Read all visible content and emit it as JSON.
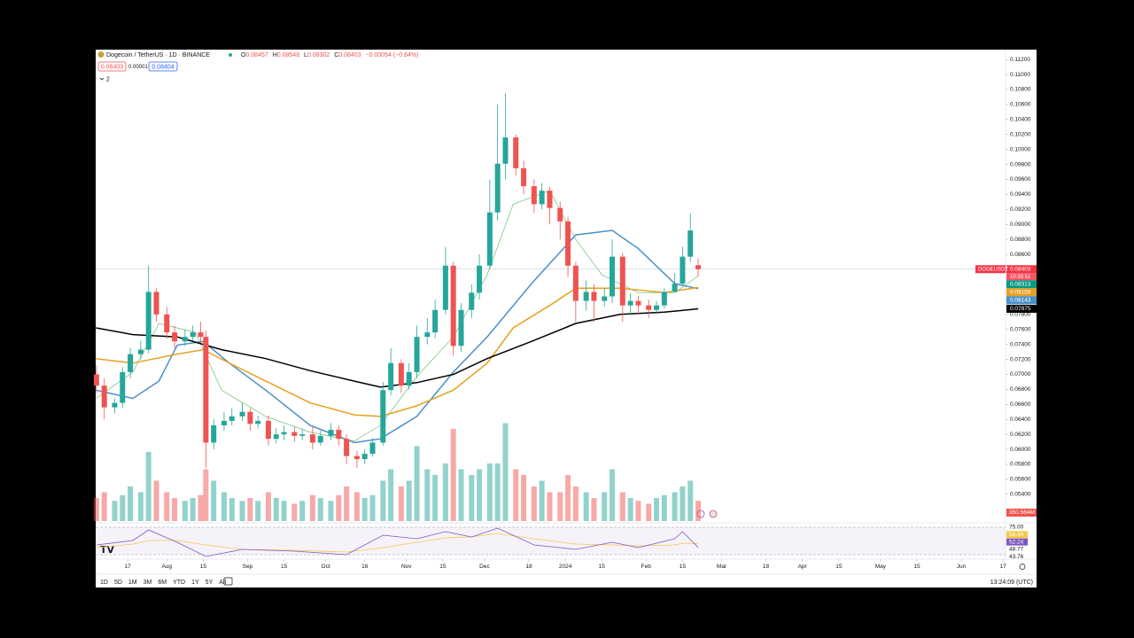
{
  "header": {
    "symbol": "Dogecoin / TetherUS · 1D · BINANCE",
    "ohlc": [
      {
        "key": "O",
        "value": "0.08457"
      },
      {
        "key": "H",
        "value": "0.08548"
      },
      {
        "key": "L",
        "value": "0.08302"
      },
      {
        "key": "C",
        "value": "0.08403"
      }
    ],
    "change": "−0.00054 (−0.64%)",
    "bid": "0.08403",
    "spread": "0.00001",
    "ask": "0.08404",
    "indicator_count": "2"
  },
  "chart_data": {
    "type": "candlestick",
    "xlim": [
      3.7,
      353
    ],
    "xticks": [
      {
        "value": 16,
        "label": "17"
      },
      {
        "value": 31,
        "label": "Aug"
      },
      {
        "value": 45,
        "label": "15"
      },
      {
        "value": 62,
        "label": "Sep"
      },
      {
        "value": 76,
        "label": "15"
      },
      {
        "value": 92,
        "label": "Oct"
      },
      {
        "value": 107,
        "label": "16"
      },
      {
        "value": 123,
        "label": "Nov"
      },
      {
        "value": 137,
        "label": "15"
      },
      {
        "value": 153,
        "label": "Dec"
      },
      {
        "value": 170,
        "label": "18"
      },
      {
        "value": 184,
        "label": "2024"
      },
      {
        "value": 198,
        "label": "15"
      },
      {
        "value": 215,
        "label": "Feb"
      },
      {
        "value": 229,
        "label": "15"
      },
      {
        "value": 244,
        "label": "Mar"
      },
      {
        "value": 261,
        "label": "18"
      },
      {
        "value": 275,
        "label": "Apr"
      },
      {
        "value": 289,
        "label": "15"
      },
      {
        "value": 305,
        "label": "May"
      },
      {
        "value": 319,
        "label": "15"
      },
      {
        "value": 336,
        "label": "Jun"
      },
      {
        "value": 352,
        "label": "17"
      }
    ],
    "ylim": [
      0.0502,
      0.1132
    ],
    "yticks": [
      {
        "value": 0.054,
        "label": "0.05400"
      },
      {
        "value": 0.056,
        "label": "0.05600"
      },
      {
        "value": 0.058,
        "label": "0.05800"
      },
      {
        "value": 0.06,
        "label": "0.06000"
      },
      {
        "value": 0.062,
        "label": "0.06200"
      },
      {
        "value": 0.064,
        "label": "0.06400"
      },
      {
        "value": 0.066,
        "label": "0.06600"
      },
      {
        "value": 0.068,
        "label": "0.06800"
      },
      {
        "value": 0.07,
        "label": "0.07000"
      },
      {
        "value": 0.072,
        "label": "0.07200"
      },
      {
        "value": 0.074,
        "label": "0.07400"
      },
      {
        "value": 0.076,
        "label": "0.07600"
      },
      {
        "value": 0.078,
        "label": "0.07800"
      },
      {
        "value": 0.08,
        "label": "0.08000"
      },
      {
        "value": 0.082,
        "label": "0.08200"
      },
      {
        "value": 0.084,
        "label": "0.08400"
      },
      {
        "value": 0.086,
        "label": "0.08600"
      },
      {
        "value": 0.088,
        "label": "0.08800"
      },
      {
        "value": 0.09,
        "label": "0.09000"
      },
      {
        "value": 0.092,
        "label": "0.09200"
      },
      {
        "value": 0.094,
        "label": "0.09400"
      },
      {
        "value": 0.096,
        "label": "0.09600"
      },
      {
        "value": 0.098,
        "label": "0.09800"
      },
      {
        "value": 0.1,
        "label": "0.10000"
      },
      {
        "value": 0.102,
        "label": "0.10200"
      },
      {
        "value": 0.104,
        "label": "0.10400"
      },
      {
        "value": 0.106,
        "label": "0.10600"
      },
      {
        "value": 0.108,
        "label": "0.10800"
      },
      {
        "value": 0.11,
        "label": "0.11000"
      },
      {
        "value": 0.112,
        "label": "0.11200"
      }
    ],
    "up_color": "#26a69a",
    "down_color": "#ef5350",
    "x": [
      4,
      7,
      11,
      14,
      17,
      21,
      24,
      27,
      31,
      34,
      38,
      41,
      44,
      46,
      49,
      53,
      56,
      60,
      63,
      66,
      70,
      73,
      76,
      80,
      83,
      87,
      90,
      94,
      97,
      100,
      104,
      107,
      110,
      114,
      117,
      121,
      124,
      127,
      131,
      134,
      138,
      141,
      144,
      148,
      151,
      155,
      158,
      161,
      165,
      168,
      172,
      175,
      178,
      182,
      185,
      188,
      192,
      195,
      199,
      202,
      206,
      209,
      212,
      216,
      219,
      222,
      226,
      229,
      232,
      235
    ],
    "open": [
      0.07,
      0.0685,
      0.0656,
      0.0662,
      0.0703,
      0.0727,
      0.0733,
      0.081,
      0.078,
      0.0756,
      0.0744,
      0.075,
      0.0756,
      0.075,
      0.0609,
      0.0632,
      0.0638,
      0.0644,
      0.065,
      0.0634,
      0.0638,
      0.0614,
      0.062,
      0.0623,
      0.0618,
      0.062,
      0.0609,
      0.0618,
      0.0626,
      0.0614,
      0.0591,
      0.0587,
      0.0594,
      0.0609,
      0.0679,
      0.0715,
      0.0685,
      0.0703,
      0.075,
      0.0756,
      0.0786,
      0.0845,
      0.0738,
      0.0786,
      0.0809,
      0.0845,
      0.0916,
      0.0981,
      0.1016,
      0.0975,
      0.0951,
      0.0927,
      0.0945,
      0.0922,
      0.0904,
      0.0845,
      0.0798,
      0.081,
      0.0798,
      0.0804,
      0.0857,
      0.0792,
      0.0798,
      0.0792,
      0.0786,
      0.0792,
      0.081,
      0.0821,
      0.0857,
      0.08457
    ],
    "high": [
      0.0712,
      0.0695,
      0.0668,
      0.071,
      0.0735,
      0.0745,
      0.0845,
      0.0815,
      0.079,
      0.0765,
      0.076,
      0.0765,
      0.077,
      0.0758,
      0.064,
      0.065,
      0.0655,
      0.0662,
      0.0655,
      0.0645,
      0.0645,
      0.0628,
      0.0632,
      0.063,
      0.0628,
      0.063,
      0.0625,
      0.0635,
      0.0632,
      0.062,
      0.0598,
      0.06,
      0.0615,
      0.069,
      0.0735,
      0.072,
      0.0715,
      0.0765,
      0.0775,
      0.08,
      0.087,
      0.085,
      0.0795,
      0.082,
      0.086,
      0.096,
      0.106,
      0.1075,
      0.102,
      0.0985,
      0.096,
      0.0955,
      0.095,
      0.093,
      0.091,
      0.085,
      0.0825,
      0.082,
      0.0815,
      0.088,
      0.0862,
      0.0808,
      0.0805,
      0.08,
      0.0798,
      0.0815,
      0.0835,
      0.087,
      0.0915,
      0.08548
    ],
    "low": [
      0.0675,
      0.064,
      0.0648,
      0.0655,
      0.0695,
      0.072,
      0.0728,
      0.077,
      0.0748,
      0.0735,
      0.0738,
      0.0745,
      0.0742,
      0.0575,
      0.06,
      0.0625,
      0.0632,
      0.0638,
      0.0625,
      0.0628,
      0.0605,
      0.0608,
      0.0612,
      0.061,
      0.0612,
      0.06,
      0.0605,
      0.0612,
      0.0605,
      0.058,
      0.0575,
      0.058,
      0.059,
      0.0605,
      0.0672,
      0.0675,
      0.068,
      0.0695,
      0.074,
      0.0748,
      0.078,
      0.0725,
      0.073,
      0.0775,
      0.08,
      0.084,
      0.0905,
      0.096,
      0.0965,
      0.094,
      0.0915,
      0.092,
      0.09,
      0.088,
      0.083,
      0.077,
      0.0785,
      0.077,
      0.079,
      0.0795,
      0.077,
      0.078,
      0.078,
      0.0775,
      0.078,
      0.0788,
      0.0812,
      0.0818,
      0.085,
      0.08302
    ],
    "close": [
      0.0685,
      0.0656,
      0.0662,
      0.0703,
      0.0727,
      0.0733,
      0.081,
      0.078,
      0.0756,
      0.0744,
      0.075,
      0.0756,
      0.075,
      0.0609,
      0.0632,
      0.0638,
      0.0644,
      0.065,
      0.0634,
      0.0638,
      0.0614,
      0.062,
      0.0623,
      0.0618,
      0.062,
      0.0609,
      0.0618,
      0.0626,
      0.0614,
      0.0591,
      0.0587,
      0.0594,
      0.0609,
      0.0679,
      0.0715,
      0.0685,
      0.0703,
      0.075,
      0.0756,
      0.0786,
      0.0845,
      0.0738,
      0.0786,
      0.0809,
      0.0845,
      0.0916,
      0.0981,
      0.1016,
      0.0975,
      0.0951,
      0.0927,
      0.0945,
      0.0922,
      0.0904,
      0.0845,
      0.0798,
      0.081,
      0.0798,
      0.0804,
      0.0857,
      0.0792,
      0.0798,
      0.0792,
      0.0786,
      0.0792,
      0.081,
      0.0821,
      0.0857,
      0.0892,
      0.08403
    ],
    "volume": [
      400,
      500,
      350,
      450,
      600,
      500,
      1200,
      700,
      500,
      400,
      350,
      400,
      450,
      900,
      700,
      500,
      400,
      350,
      400,
      350,
      500,
      400,
      350,
      300,
      350,
      450,
      400,
      350,
      450,
      600,
      500,
      400,
      450,
      700,
      900,
      600,
      700,
      1300,
      900,
      800,
      1000,
      1600,
      900,
      800,
      900,
      1000,
      1000,
      1700,
      900,
      800,
      600,
      700,
      500,
      500,
      800,
      600,
      500,
      400,
      500,
      900,
      500,
      400,
      350,
      300,
      400,
      450,
      500,
      600,
      700,
      350.564
    ],
    "volume_lim": [
      0,
      2000
    ],
    "volume_label": {
      "value": 350.564,
      "label": "350.564M"
    },
    "series": [
      {
        "color": "#6fbf73",
        "x": [
          3.8,
          18,
          28,
          42,
          52,
          69,
          86,
          103,
          113,
          127,
          141,
          154,
          164,
          178,
          188,
          198,
          212,
          226,
          235
        ],
        "values": [
          0.0668,
          0.0703,
          0.0768,
          0.0756,
          0.0679,
          0.0644,
          0.0623,
          0.0611,
          0.0632,
          0.0697,
          0.075,
          0.0833,
          0.0927,
          0.0945,
          0.088,
          0.0833,
          0.0809,
          0.0809,
          0.08313
        ]
      },
      {
        "color": "#4a90c8",
        "x": [
          3.8,
          18,
          28,
          35,
          45,
          55,
          69,
          86,
          103,
          113,
          127,
          141,
          154,
          171,
          188,
          202,
          212,
          226,
          235
        ],
        "values": [
          0.0679,
          0.0668,
          0.0691,
          0.0739,
          0.0744,
          0.0715,
          0.0679,
          0.0632,
          0.0609,
          0.0614,
          0.0644,
          0.0703,
          0.075,
          0.0821,
          0.0886,
          0.0892,
          0.0868,
          0.0821,
          0.08143
        ]
      },
      {
        "color": "#e6a020",
        "x": [
          3.8,
          18,
          35,
          45,
          55,
          69,
          86,
          103,
          113,
          127,
          141,
          154,
          164,
          178,
          188,
          205,
          222,
          235
        ],
        "values": [
          0.0721,
          0.0715,
          0.0727,
          0.0733,
          0.0715,
          0.0691,
          0.0662,
          0.0646,
          0.0644,
          0.0658,
          0.0679,
          0.0715,
          0.0762,
          0.0792,
          0.0815,
          0.0815,
          0.0809,
          0.08159
        ]
      },
      {
        "color": "#000000",
        "x": [
          3.8,
          18,
          35,
          52,
          69,
          86,
          103,
          113,
          127,
          141,
          154,
          171,
          188,
          205,
          222,
          235
        ],
        "values": [
          0.0762,
          0.0753,
          0.075,
          0.0733,
          0.0721,
          0.0705,
          0.0691,
          0.0683,
          0.0689,
          0.07,
          0.0721,
          0.0744,
          0.0768,
          0.078,
          0.0783,
          0.07875
        ]
      }
    ],
    "price_labels": [
      {
        "value": 0.08403,
        "label": "0.08403",
        "color": "#f23645"
      },
      {
        "value": 0.08313,
        "label": "0.08313",
        "color": "#089981"
      },
      {
        "value": 0.08159,
        "label": "0.08159",
        "color": "#e6a020"
      },
      {
        "value": 0.08143,
        "label": "0.08143",
        "color": "#4a90c8"
      },
      {
        "value": 0.07875,
        "label": "0.07875",
        "color": "#000000"
      }
    ],
    "symbol_tag": "DOGEUSDT",
    "countdown": "10:35:51",
    "rsi": {
      "ylim": [
        40,
        78
      ],
      "color": "#7e57c2",
      "ma_color": "#f7c948",
      "x": [
        4,
        18,
        24,
        35,
        46,
        60,
        80,
        100,
        114,
        127,
        138,
        148,
        158,
        172,
        188,
        202,
        212,
        226,
        229,
        235
      ],
      "values": [
        55,
        60,
        72,
        58,
        42,
        50,
        48,
        44,
        66,
        62,
        70,
        64,
        74,
        55,
        50,
        58,
        52,
        62,
        70,
        52.24
      ],
      "ma": [
        52,
        56,
        60,
        60,
        55,
        50,
        49,
        47,
        52,
        58,
        63,
        64,
        68,
        62,
        56,
        55,
        54,
        55,
        57,
        56.44
      ],
      "band": [
        75,
        44
      ],
      "labels": [
        {
          "value": 75,
          "label": "75.00"
        },
        {
          "value": 56.44,
          "label": "56.44",
          "color": "#f7c948"
        },
        {
          "value": 52.24,
          "label": "52.24",
          "color": "#7e57c2"
        },
        {
          "value": 48.77,
          "label": "48.77"
        },
        {
          "value": 43.76,
          "label": "43.76"
        }
      ]
    }
  },
  "ranges": [
    "1D",
    "5D",
    "1M",
    "3M",
    "6M",
    "YTD",
    "1Y",
    "5Y",
    "All"
  ],
  "clock": "13:24:09 (UTC)"
}
